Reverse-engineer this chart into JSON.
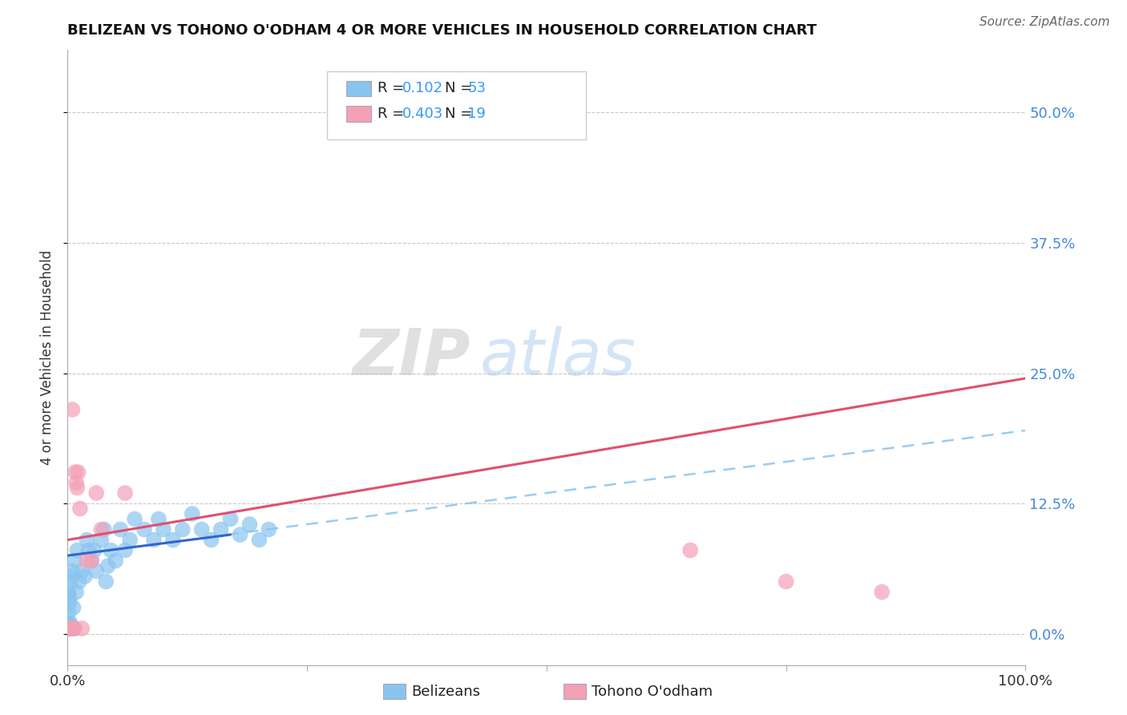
{
  "title": "BELIZEAN VS TOHONO O'ODHAM 4 OR MORE VEHICLES IN HOUSEHOLD CORRELATION CHART",
  "source": "Source: ZipAtlas.com",
  "legend_blue_R": "0.102",
  "legend_blue_N": "53",
  "legend_pink_R": "0.403",
  "legend_pink_N": "19",
  "blue_scatter": [
    [
      0.001,
      0.005
    ],
    [
      0.002,
      0.005
    ],
    [
      0.001,
      0.01
    ],
    [
      0.003,
      0.005
    ],
    [
      0.002,
      0.008
    ],
    [
      0.004,
      0.005
    ],
    [
      0.001,
      0.02
    ],
    [
      0.003,
      0.01
    ],
    [
      0.005,
      0.005
    ],
    [
      0.002,
      0.03
    ],
    [
      0.001,
      0.04
    ],
    [
      0.002,
      0.035
    ],
    [
      0.003,
      0.05
    ],
    [
      0.004,
      0.055
    ],
    [
      0.005,
      0.06
    ],
    [
      0.006,
      0.025
    ],
    [
      0.007,
      0.005
    ],
    [
      0.008,
      0.07
    ],
    [
      0.009,
      0.04
    ],
    [
      0.01,
      0.08
    ],
    [
      0.012,
      0.05
    ],
    [
      0.015,
      0.06
    ],
    [
      0.018,
      0.055
    ],
    [
      0.02,
      0.09
    ],
    [
      0.022,
      0.08
    ],
    [
      0.025,
      0.07
    ],
    [
      0.028,
      0.08
    ],
    [
      0.03,
      0.06
    ],
    [
      0.035,
      0.09
    ],
    [
      0.038,
      0.1
    ],
    [
      0.04,
      0.05
    ],
    [
      0.042,
      0.065
    ],
    [
      0.045,
      0.08
    ],
    [
      0.05,
      0.07
    ],
    [
      0.055,
      0.1
    ],
    [
      0.06,
      0.08
    ],
    [
      0.065,
      0.09
    ],
    [
      0.07,
      0.11
    ],
    [
      0.08,
      0.1
    ],
    [
      0.09,
      0.09
    ],
    [
      0.095,
      0.11
    ],
    [
      0.1,
      0.1
    ],
    [
      0.11,
      0.09
    ],
    [
      0.12,
      0.1
    ],
    [
      0.13,
      0.115
    ],
    [
      0.14,
      0.1
    ],
    [
      0.15,
      0.09
    ],
    [
      0.16,
      0.1
    ],
    [
      0.17,
      0.11
    ],
    [
      0.18,
      0.095
    ],
    [
      0.19,
      0.105
    ],
    [
      0.2,
      0.09
    ],
    [
      0.21,
      0.1
    ]
  ],
  "pink_scatter": [
    [
      0.005,
      0.215
    ],
    [
      0.008,
      0.155
    ],
    [
      0.009,
      0.145
    ],
    [
      0.01,
      0.14
    ],
    [
      0.011,
      0.155
    ],
    [
      0.013,
      0.12
    ],
    [
      0.02,
      0.07
    ],
    [
      0.025,
      0.07
    ],
    [
      0.03,
      0.135
    ],
    [
      0.035,
      0.1
    ],
    [
      0.06,
      0.135
    ],
    [
      0.002,
      0.005
    ],
    [
      0.003,
      0.005
    ],
    [
      0.006,
      0.005
    ],
    [
      0.007,
      0.005
    ],
    [
      0.015,
      0.005
    ],
    [
      0.65,
      0.08
    ],
    [
      0.75,
      0.05
    ],
    [
      0.85,
      0.04
    ]
  ],
  "blue_solid_line_x": [
    0.0,
    0.17
  ],
  "blue_solid_line_y": [
    0.075,
    0.095
  ],
  "blue_dash_line_x": [
    0.0,
    1.0
  ],
  "blue_dash_line_y": [
    0.075,
    0.195
  ],
  "pink_solid_line_x": [
    0.0,
    1.0
  ],
  "pink_solid_line_y": [
    0.09,
    0.245
  ],
  "blue_color": "#89c4f0",
  "pink_color": "#f4a0b5",
  "blue_line_color": "#3366cc",
  "pink_line_color": "#e0506e",
  "watermark_zip": "ZIP",
  "watermark_atlas": "atlas",
  "bg_color": "#ffffff",
  "grid_color": "#bbbbbb",
  "xlim": [
    0.0,
    1.0
  ],
  "ylim": [
    -0.03,
    0.56
  ],
  "ytick_vals": [
    0.0,
    0.125,
    0.25,
    0.375,
    0.5
  ],
  "ytick_labels": [
    "0.0%",
    "12.5%",
    "25.0%",
    "37.5%",
    "50.0%"
  ],
  "xtick_vals": [
    0.0,
    0.25,
    0.5,
    0.75,
    1.0
  ],
  "xtick_labels": [
    "0.0%",
    "",
    "",
    "",
    "100.0%"
  ],
  "ylabel_label": "4 or more Vehicles in Household"
}
